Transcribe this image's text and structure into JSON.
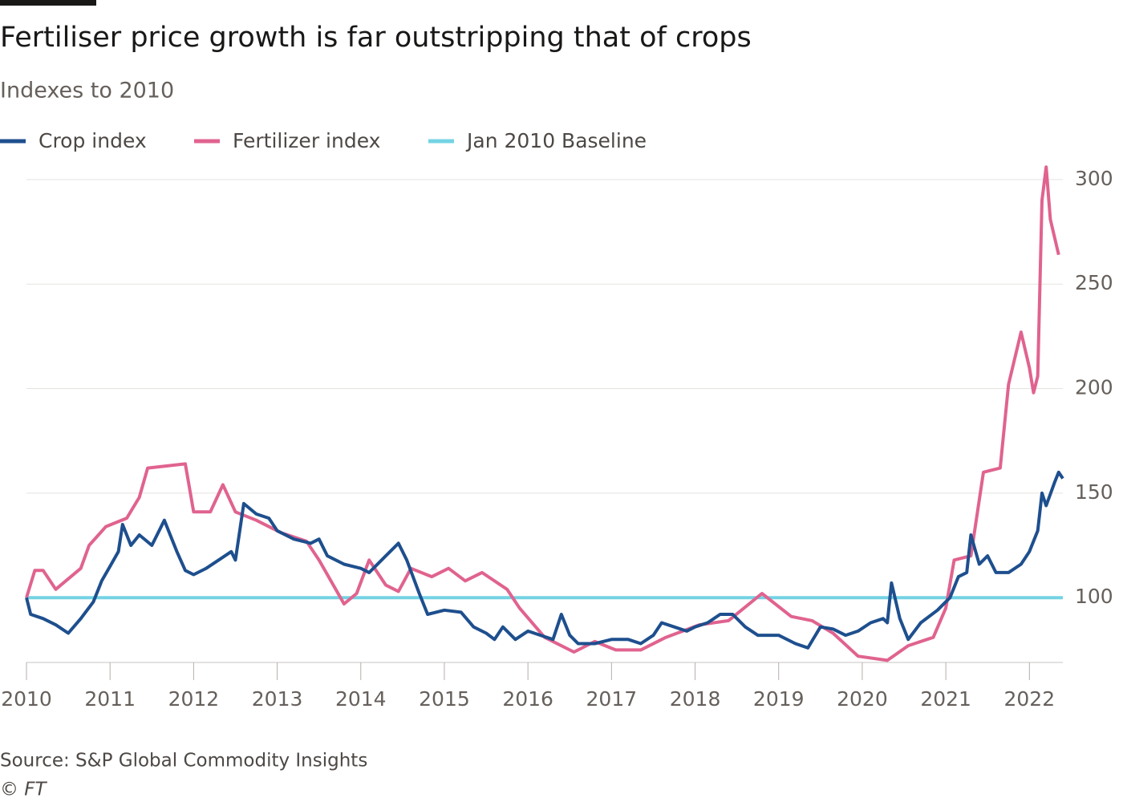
{
  "chart_data": {
    "type": "line",
    "title": "Fertiliser price growth is far outstripping that of crops",
    "subtitle": "Indexes to 2010",
    "source": "Source: S&P Global Commodity Insights",
    "credit": "© FT",
    "xlim": [
      2010,
      2022.4
    ],
    "xticks": [
      2010,
      2011,
      2012,
      2013,
      2014,
      2015,
      2016,
      2017,
      2018,
      2019,
      2020,
      2021,
      2022
    ],
    "ylim": [
      69,
      308
    ],
    "yticks": [
      100,
      150,
      200,
      250,
      300
    ],
    "grid": true,
    "legend": "top-left",
    "series": [
      {
        "name": "Crop index",
        "color": "#1e4f8e",
        "x": [
          2010.0,
          2010.05,
          2010.2,
          2010.35,
          2010.5,
          2010.65,
          2010.8,
          2010.9,
          2011.0,
          2011.1,
          2011.15,
          2011.25,
          2011.35,
          2011.5,
          2011.65,
          2011.8,
          2011.9,
          2012.0,
          2012.15,
          2012.3,
          2012.45,
          2012.5,
          2012.6,
          2012.75,
          2012.9,
          2013.0,
          2013.2,
          2013.4,
          2013.5,
          2013.6,
          2013.8,
          2014.0,
          2014.1,
          2014.3,
          2014.45,
          2014.55,
          2014.7,
          2014.8,
          2015.0,
          2015.2,
          2015.35,
          2015.5,
          2015.6,
          2015.7,
          2015.85,
          2016.0,
          2016.15,
          2016.3,
          2016.4,
          2016.5,
          2016.6,
          2016.8,
          2017.0,
          2017.2,
          2017.35,
          2017.5,
          2017.6,
          2017.75,
          2017.9,
          2018.0,
          2018.15,
          2018.3,
          2018.45,
          2018.6,
          2018.75,
          2018.9,
          2019.0,
          2019.2,
          2019.35,
          2019.5,
          2019.65,
          2019.8,
          2019.95,
          2020.1,
          2020.25,
          2020.3,
          2020.35,
          2020.45,
          2020.55,
          2020.7,
          2020.9,
          2021.05,
          2021.15,
          2021.25,
          2021.3,
          2021.4,
          2021.5,
          2021.6,
          2021.75,
          2021.9,
          2022.0,
          2022.1,
          2022.15,
          2022.2,
          2022.3,
          2022.35,
          2022.4
        ],
        "values": [
          100,
          92,
          90,
          87,
          83,
          90,
          98,
          108,
          115,
          122,
          135,
          125,
          130,
          125,
          137,
          122,
          113,
          111,
          114,
          118,
          122,
          118,
          145,
          140,
          138,
          132,
          128,
          126,
          128,
          120,
          116,
          114,
          112,
          120,
          126,
          118,
          102,
          92,
          94,
          93,
          86,
          83,
          80,
          86,
          80,
          84,
          82,
          80,
          92,
          82,
          78,
          78,
          80,
          80,
          78,
          82,
          88,
          86,
          84,
          86,
          88,
          92,
          92,
          86,
          82,
          82,
          82,
          78,
          76,
          86,
          85,
          82,
          84,
          88,
          90,
          88,
          107,
          90,
          80,
          88,
          94,
          100,
          110,
          112,
          130,
          116,
          120,
          112,
          112,
          116,
          122,
          132,
          150,
          144,
          155,
          160,
          157
        ]
      },
      {
        "name": "Fertilizer index",
        "color": "#e0638f",
        "x": [
          2010.0,
          2010.1,
          2010.2,
          2010.35,
          2010.65,
          2010.75,
          2010.95,
          2011.2,
          2011.35,
          2011.45,
          2011.9,
          2012.0,
          2012.2,
          2012.35,
          2012.5,
          2012.75,
          2013.05,
          2013.35,
          2013.5,
          2013.8,
          2013.95,
          2014.1,
          2014.3,
          2014.45,
          2014.6,
          2014.85,
          2015.05,
          2015.25,
          2015.45,
          2015.75,
          2015.9,
          2016.2,
          2016.55,
          2016.8,
          2017.05,
          2017.35,
          2017.65,
          2018.05,
          2018.4,
          2018.8,
          2019.15,
          2019.4,
          2019.65,
          2019.95,
          2020.3,
          2020.55,
          2020.85,
          2021.0,
          2021.1,
          2021.3,
          2021.45,
          2021.65,
          2021.75,
          2021.9,
          2022.0,
          2022.05,
          2022.1,
          2022.15,
          2022.2,
          2022.25,
          2022.35
        ],
        "values": [
          100,
          113,
          113,
          104,
          114,
          125,
          134,
          138,
          148,
          162,
          164,
          141,
          141,
          154,
          141,
          137,
          131,
          127,
          118,
          97,
          102,
          118,
          106,
          103,
          114,
          110,
          114,
          108,
          112,
          104,
          95,
          81,
          74,
          79,
          75,
          75,
          81,
          87,
          89,
          102,
          91,
          89,
          83,
          72,
          70,
          77,
          81,
          95,
          118,
          120,
          160,
          162,
          202,
          227,
          210,
          198,
          206,
          290,
          306,
          281,
          264
        ]
      },
      {
        "name": "Jan 2010 Baseline",
        "color": "#74d3e4",
        "x": [
          2010.0,
          2022.4
        ],
        "values": [
          100,
          100
        ]
      }
    ]
  }
}
